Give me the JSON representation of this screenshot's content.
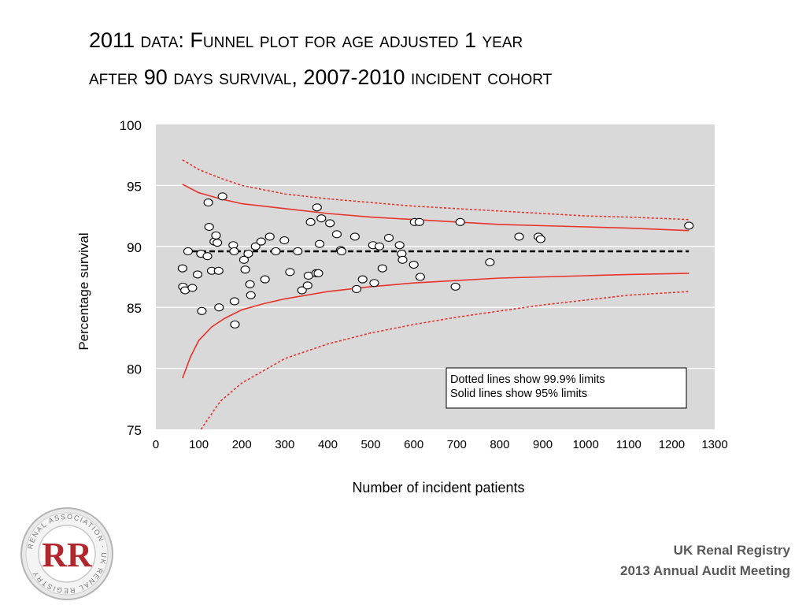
{
  "slide": {
    "title_line1": "2011 data: Funnel plot for age adjusted 1 year",
    "title_line2": "after 90 days survival, 2007-2010 incident cohort",
    "footer_line1": "UK Renal Registry",
    "footer_line2": "2013 Annual Audit Meeting",
    "logo_letters": "RR",
    "logo_ring_text": "RENAL ASSOCIATION · UK RENAL REGISTRY"
  },
  "chart_data": {
    "type": "scatter",
    "title": "",
    "xlabel": "Number of incident patients",
    "ylabel": "Percentage survival",
    "xlim": [
      0,
      1300
    ],
    "ylim": [
      75,
      100
    ],
    "x_ticks": [
      "0",
      "100",
      "200",
      "300",
      "400",
      "500",
      "600",
      "700",
      "800",
      "900",
      "1000",
      "1100",
      "1200",
      "1300"
    ],
    "y_ticks": [
      "75",
      "80",
      "85",
      "90",
      "95",
      "100"
    ],
    "grid": "horizontal",
    "mean": 89.6,
    "legend": {
      "placement": "lower-right",
      "lines": [
        "Dotted lines show 99.9% limits",
        "Solid lines show 95% limits"
      ]
    },
    "limits": {
      "limit_95_upper": {
        "x": [
          62,
          100,
          150,
          200,
          300,
          400,
          500,
          600,
          700,
          800,
          900,
          1000,
          1100,
          1240
        ],
        "y": [
          95.1,
          94.4,
          93.9,
          93.5,
          93.1,
          92.7,
          92.4,
          92.2,
          92.0,
          91.8,
          91.7,
          91.6,
          91.5,
          91.3
        ]
      },
      "limit_95_lower": {
        "x": [
          62,
          80,
          100,
          130,
          160,
          200,
          250,
          300,
          400,
          500,
          600,
          700,
          800,
          900,
          1000,
          1100,
          1240
        ],
        "y": [
          79.2,
          80.9,
          82.3,
          83.4,
          84.1,
          84.8,
          85.3,
          85.7,
          86.3,
          86.7,
          87.0,
          87.2,
          87.4,
          87.5,
          87.6,
          87.7,
          87.8
        ]
      },
      "limit_999_upper": {
        "x": [
          62,
          100,
          150,
          200,
          300,
          400,
          500,
          600,
          700,
          800,
          900,
          1000,
          1100,
          1240
        ],
        "y": [
          97.1,
          96.3,
          95.6,
          95.0,
          94.3,
          93.9,
          93.6,
          93.3,
          93.1,
          92.9,
          92.7,
          92.5,
          92.4,
          92.2
        ]
      },
      "limit_999_lower": {
        "x": [
          105,
          150,
          200,
          300,
          400,
          500,
          600,
          700,
          800,
          900,
          1000,
          1100,
          1240
        ],
        "y": [
          75.0,
          77.3,
          78.8,
          80.8,
          82.0,
          82.9,
          83.6,
          84.2,
          84.7,
          85.2,
          85.6,
          86.0,
          86.3
        ]
      }
    },
    "points": [
      {
        "x": 62,
        "y": 88.2
      },
      {
        "x": 63,
        "y": 86.7
      },
      {
        "x": 68,
        "y": 86.4
      },
      {
        "x": 75,
        "y": 89.6
      },
      {
        "x": 85,
        "y": 86.6
      },
      {
        "x": 97,
        "y": 87.7
      },
      {
        "x": 105,
        "y": 89.4
      },
      {
        "x": 107,
        "y": 84.7
      },
      {
        "x": 120,
        "y": 89.2
      },
      {
        "x": 122,
        "y": 93.6
      },
      {
        "x": 124,
        "y": 91.6
      },
      {
        "x": 130,
        "y": 88.0
      },
      {
        "x": 136,
        "y": 90.4
      },
      {
        "x": 140,
        "y": 90.9
      },
      {
        "x": 143,
        "y": 90.3
      },
      {
        "x": 146,
        "y": 88.0
      },
      {
        "x": 147,
        "y": 85.0
      },
      {
        "x": 155,
        "y": 94.1
      },
      {
        "x": 180,
        "y": 90.1
      },
      {
        "x": 182,
        "y": 89.6
      },
      {
        "x": 183,
        "y": 85.5
      },
      {
        "x": 184,
        "y": 83.6
      },
      {
        "x": 205,
        "y": 88.9
      },
      {
        "x": 208,
        "y": 88.1
      },
      {
        "x": 215,
        "y": 89.4
      },
      {
        "x": 219,
        "y": 86.9
      },
      {
        "x": 221,
        "y": 86.0
      },
      {
        "x": 232,
        "y": 90.0
      },
      {
        "x": 245,
        "y": 90.4
      },
      {
        "x": 254,
        "y": 87.3
      },
      {
        "x": 265,
        "y": 90.8
      },
      {
        "x": 279,
        "y": 89.6
      },
      {
        "x": 299,
        "y": 90.5
      },
      {
        "x": 312,
        "y": 87.9
      },
      {
        "x": 330,
        "y": 89.6
      },
      {
        "x": 340,
        "y": 86.4
      },
      {
        "x": 353,
        "y": 86.8
      },
      {
        "x": 355,
        "y": 87.6
      },
      {
        "x": 360,
        "y": 92.0
      },
      {
        "x": 373,
        "y": 87.8
      },
      {
        "x": 375,
        "y": 93.2
      },
      {
        "x": 378,
        "y": 87.8
      },
      {
        "x": 381,
        "y": 90.2
      },
      {
        "x": 385,
        "y": 92.3
      },
      {
        "x": 405,
        "y": 91.9
      },
      {
        "x": 421,
        "y": 91.0
      },
      {
        "x": 430,
        "y": 89.7
      },
      {
        "x": 432,
        "y": 89.6
      },
      {
        "x": 463,
        "y": 90.8
      },
      {
        "x": 467,
        "y": 86.5
      },
      {
        "x": 481,
        "y": 87.3
      },
      {
        "x": 505,
        "y": 90.1
      },
      {
        "x": 508,
        "y": 87.0
      },
      {
        "x": 520,
        "y": 90.0
      },
      {
        "x": 527,
        "y": 88.2
      },
      {
        "x": 542,
        "y": 90.7
      },
      {
        "x": 567,
        "y": 90.1
      },
      {
        "x": 572,
        "y": 89.4
      },
      {
        "x": 574,
        "y": 88.9
      },
      {
        "x": 600,
        "y": 88.5
      },
      {
        "x": 602,
        "y": 92.0
      },
      {
        "x": 613,
        "y": 92.0
      },
      {
        "x": 615,
        "y": 87.5
      },
      {
        "x": 697,
        "y": 86.7
      },
      {
        "x": 708,
        "y": 92.0
      },
      {
        "x": 777,
        "y": 88.7
      },
      {
        "x": 845,
        "y": 90.8
      },
      {
        "x": 890,
        "y": 90.8
      },
      {
        "x": 895,
        "y": 90.6
      },
      {
        "x": 1240,
        "y": 91.7
      }
    ],
    "colors": {
      "plot_bg": "#d9d9d9",
      "limit": "#e8332a",
      "mean": "#000000",
      "point_fill": "#ffffff",
      "point_stroke": "#000000",
      "axis_text": "#000000"
    }
  }
}
